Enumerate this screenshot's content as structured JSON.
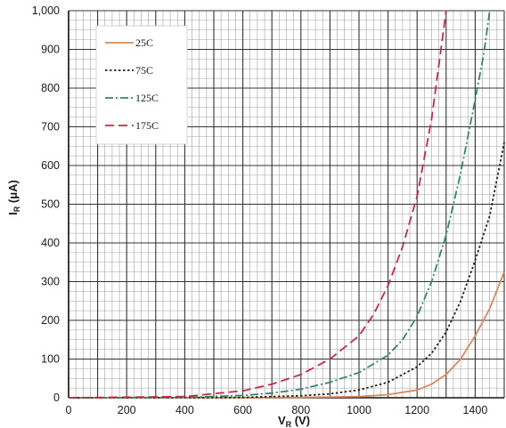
{
  "chart_data": {
    "type": "line",
    "xlabel": {
      "main": "V",
      "sub": "R",
      "unit": " (V)"
    },
    "ylabel": {
      "main": "I",
      "sub": "R",
      "unit": " (μA)"
    },
    "xlim": [
      0,
      1500
    ],
    "ylim": [
      0,
      1000
    ],
    "x_ticks": [
      0,
      200,
      400,
      600,
      800,
      1000,
      1200,
      1400
    ],
    "x_tick_labels": [
      "0",
      "200",
      "400",
      "600",
      "800",
      "1000",
      "1200",
      "1400"
    ],
    "y_ticks": [
      0,
      100,
      200,
      300,
      400,
      500,
      600,
      700,
      800,
      900,
      1000
    ],
    "y_tick_labels": [
      "0",
      "100",
      "200",
      "300",
      "400",
      "500",
      "600",
      "700",
      "800",
      "900",
      "1,000"
    ],
    "grid": true,
    "legend_position": "top-left",
    "series": [
      {
        "name": "25C",
        "color": "#d9895a",
        "dash": "solid",
        "x": [
          0,
          600,
          800,
          1000,
          1100,
          1200,
          1250,
          1300,
          1350,
          1400,
          1450,
          1500
        ],
        "y": [
          0,
          0,
          1,
          3,
          8,
          20,
          35,
          60,
          100,
          160,
          230,
          325
        ]
      },
      {
        "name": "75C",
        "color": "#222222",
        "dash": "dotted",
        "x": [
          0,
          400,
          600,
          800,
          900,
          1000,
          1100,
          1200,
          1250,
          1300,
          1350,
          1400,
          1450,
          1500
        ],
        "y": [
          0,
          0,
          1,
          5,
          10,
          20,
          40,
          80,
          115,
          170,
          250,
          355,
          470,
          660
        ]
      },
      {
        "name": "125C",
        "color": "#2f8a6a",
        "dash": "dashdot",
        "x": [
          0,
          400,
          600,
          700,
          800,
          900,
          1000,
          1100,
          1150,
          1200,
          1250,
          1300,
          1350,
          1400,
          1430,
          1450
        ],
        "y": [
          0,
          1,
          6,
          12,
          22,
          40,
          65,
          110,
          150,
          210,
          300,
          420,
          580,
          770,
          890,
          1000
        ]
      },
      {
        "name": "175C",
        "color": "#c8284a",
        "dash": "dashed",
        "x": [
          0,
          400,
          600,
          700,
          800,
          900,
          1000,
          1050,
          1100,
          1150,
          1200,
          1250,
          1300
        ],
        "y": [
          0,
          3,
          18,
          35,
          60,
          100,
          160,
          215,
          290,
          390,
          520,
          720,
          1000
        ]
      }
    ]
  }
}
